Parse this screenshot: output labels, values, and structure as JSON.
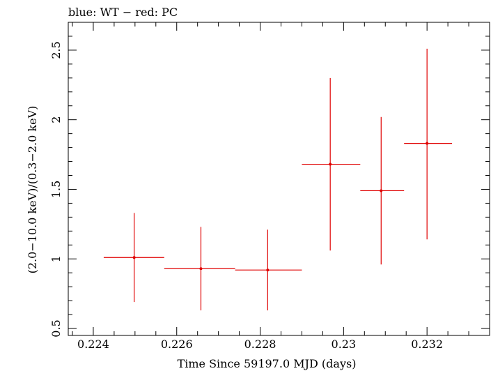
{
  "chart_data": {
    "type": "scatter",
    "title": "blue: WT − red: PC",
    "xlabel": "Time Since 59197.0 MJD (days)",
    "ylabel": "(2.0−10.0 keV)/(0.3−2.0 keV)",
    "xlim": [
      0.2234,
      0.2335
    ],
    "ylim": [
      0.45,
      2.7
    ],
    "x_ticks": [
      {
        "value": 0.224,
        "label": "0.224"
      },
      {
        "value": 0.226,
        "label": "0.226"
      },
      {
        "value": 0.228,
        "label": "0.228"
      },
      {
        "value": 0.23,
        "label": "0.23"
      },
      {
        "value": 0.232,
        "label": "0.232"
      }
    ],
    "y_ticks": [
      {
        "value": 0.5,
        "label": "0.5"
      },
      {
        "value": 1.0,
        "label": "1"
      },
      {
        "value": 1.5,
        "label": "1.5"
      },
      {
        "value": 2.0,
        "label": "2"
      },
      {
        "value": 2.5,
        "label": "2.5"
      }
    ],
    "grid": false,
    "series": [
      {
        "color": "#e00000",
        "points": [
          {
            "x": 0.22498,
            "xlo": 0.22425,
            "xhi": 0.2257,
            "y": 1.01,
            "ylo": 0.69,
            "yhi": 1.33
          },
          {
            "x": 0.22658,
            "xlo": 0.2257,
            "xhi": 0.2274,
            "y": 0.93,
            "ylo": 0.63,
            "yhi": 1.23
          },
          {
            "x": 0.22818,
            "xlo": 0.2274,
            "xhi": 0.229,
            "y": 0.92,
            "ylo": 0.63,
            "yhi": 1.21
          },
          {
            "x": 0.22968,
            "xlo": 0.229,
            "xhi": 0.2304,
            "y": 1.68,
            "ylo": 1.06,
            "yhi": 2.3
          },
          {
            "x": 0.2309,
            "xlo": 0.2304,
            "xhi": 0.23145,
            "y": 1.49,
            "ylo": 0.96,
            "yhi": 2.02
          },
          {
            "x": 0.232,
            "xlo": 0.23145,
            "xhi": 0.2326,
            "y": 1.83,
            "ylo": 1.14,
            "yhi": 2.51
          }
        ]
      }
    ]
  }
}
